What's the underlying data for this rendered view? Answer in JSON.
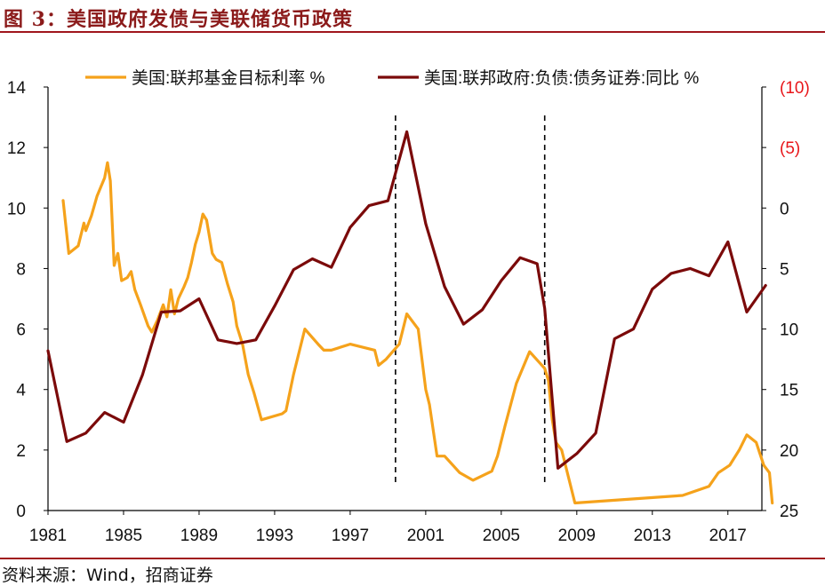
{
  "figure_title": "图 3：美国政府发债与美联储货币政策",
  "source": "资料来源：Wind，招商证券",
  "colors": {
    "fed_funds": "#F5A21B",
    "debt_yoy": "#7B0A0A",
    "right_axis_red": "#E8161A",
    "header_rule": "#A0161C"
  },
  "chart_data": {
    "type": "line",
    "x_ticks": [
      "1981",
      "1985",
      "1989",
      "1993",
      "1997",
      "2001",
      "2005",
      "2009",
      "2013",
      "2017"
    ],
    "xlim": [
      1981,
      2018.8
    ],
    "y_left": {
      "ticks": [
        "14",
        "12",
        "10",
        "8",
        "6",
        "4",
        "2",
        "0"
      ],
      "lim": [
        0,
        14
      ]
    },
    "y_right": {
      "ticks": [
        "(10)",
        "(5)",
        "0",
        "5",
        "10",
        "15",
        "20",
        "25"
      ],
      "lim": [
        -10,
        25
      ],
      "inverted": true
    },
    "vlines_dashed": [
      1999.4,
      2007.3
    ],
    "series": [
      {
        "name": "美国:联邦基金目标利率 %",
        "axis": "left",
        "color": "#F5A21B",
        "points": [
          [
            1981.8,
            10.25
          ],
          [
            1982.1,
            8.5
          ],
          [
            1982.6,
            8.75
          ],
          [
            1982.9,
            9.5
          ],
          [
            1983.0,
            9.25
          ],
          [
            1983.3,
            9.75
          ],
          [
            1983.6,
            10.4
          ],
          [
            1984.0,
            11.0
          ],
          [
            1984.15,
            11.5
          ],
          [
            1984.3,
            10.9
          ],
          [
            1984.5,
            8.1
          ],
          [
            1984.7,
            8.5
          ],
          [
            1984.9,
            7.6
          ],
          [
            1985.2,
            7.7
          ],
          [
            1985.4,
            7.9
          ],
          [
            1985.6,
            7.3
          ],
          [
            1985.9,
            6.8
          ],
          [
            1986.3,
            6.1
          ],
          [
            1986.5,
            5.9
          ],
          [
            1986.8,
            6.3
          ],
          [
            1987.1,
            6.8
          ],
          [
            1987.3,
            6.4
          ],
          [
            1987.5,
            7.3
          ],
          [
            1987.7,
            6.5
          ],
          [
            1987.9,
            7.0
          ],
          [
            1988.2,
            7.4
          ],
          [
            1988.4,
            7.7
          ],
          [
            1988.6,
            8.2
          ],
          [
            1988.8,
            8.8
          ],
          [
            1989.0,
            9.2
          ],
          [
            1989.2,
            9.8
          ],
          [
            1989.4,
            9.6
          ],
          [
            1989.7,
            8.5
          ],
          [
            1989.9,
            8.3
          ],
          [
            1990.2,
            8.2
          ],
          [
            1990.5,
            7.5
          ],
          [
            1990.8,
            6.9
          ],
          [
            1991.0,
            6.1
          ],
          [
            1991.3,
            5.5
          ],
          [
            1991.6,
            4.5
          ],
          [
            1991.9,
            3.9
          ],
          [
            1992.3,
            3.0
          ],
          [
            1993.4,
            3.2
          ],
          [
            1993.6,
            3.3
          ],
          [
            1994.0,
            4.5
          ],
          [
            1994.6,
            6.0
          ],
          [
            1995.3,
            5.5
          ],
          [
            1995.6,
            5.3
          ],
          [
            1996.0,
            5.3
          ],
          [
            1997.0,
            5.5
          ],
          [
            1998.3,
            5.3
          ],
          [
            1998.5,
            4.8
          ],
          [
            1998.9,
            5.0
          ],
          [
            1999.6,
            5.5
          ],
          [
            2000.0,
            6.5
          ],
          [
            2000.6,
            6.0
          ],
          [
            2001.0,
            4.0
          ],
          [
            2001.2,
            3.5
          ],
          [
            2001.6,
            1.8
          ],
          [
            2002.0,
            1.8
          ],
          [
            2002.8,
            1.25
          ],
          [
            2003.5,
            1.0
          ],
          [
            2004.5,
            1.3
          ],
          [
            2004.8,
            1.8
          ],
          [
            2005.2,
            2.8
          ],
          [
            2005.8,
            4.2
          ],
          [
            2006.5,
            5.25
          ],
          [
            2007.3,
            4.7
          ],
          [
            2007.5,
            4.3
          ],
          [
            2007.7,
            3.0
          ],
          [
            2007.9,
            2.25
          ],
          [
            2008.2,
            2.0
          ],
          [
            2008.9,
            0.25
          ],
          [
            2014.6,
            0.5
          ],
          [
            2016.0,
            0.8
          ],
          [
            2016.5,
            1.25
          ],
          [
            2017.1,
            1.5
          ],
          [
            2017.6,
            2.0
          ],
          [
            2018.0,
            2.5
          ],
          [
            2018.5,
            2.25
          ],
          [
            2018.9,
            1.5
          ],
          [
            2019.2,
            1.25
          ],
          [
            2019.35,
            0.25
          ]
        ]
      },
      {
        "name": "美国:联邦政府:负债:债务证券:同比 %",
        "axis": "right",
        "color": "#7B0A0A",
        "points": [
          [
            1981.0,
            11.8
          ],
          [
            1982.0,
            19.3
          ],
          [
            1983.0,
            18.6
          ],
          [
            1984.0,
            16.9
          ],
          [
            1985.0,
            17.7
          ],
          [
            1986.0,
            13.8
          ],
          [
            1987.0,
            8.6
          ],
          [
            1988.0,
            8.5
          ],
          [
            1989.0,
            7.5
          ],
          [
            1990.0,
            10.9
          ],
          [
            1991.0,
            11.2
          ],
          [
            1992.0,
            10.9
          ],
          [
            1993.0,
            8.1
          ],
          [
            1994.0,
            5.1
          ],
          [
            1995.0,
            4.2
          ],
          [
            1996.0,
            4.9
          ],
          [
            1997.0,
            1.6
          ],
          [
            1998.0,
            -0.2
          ],
          [
            1999.0,
            -0.6
          ],
          [
            2000.0,
            -6.3
          ],
          [
            2001.0,
            1.3
          ],
          [
            2002.0,
            6.5
          ],
          [
            2003.0,
            9.6
          ],
          [
            2004.0,
            8.4
          ],
          [
            2005.0,
            6.0
          ],
          [
            2006.0,
            4.1
          ],
          [
            2006.9,
            4.6
          ],
          [
            2007.3,
            8.3
          ],
          [
            2008.0,
            21.5
          ],
          [
            2009.0,
            20.3
          ],
          [
            2010.0,
            18.6
          ],
          [
            2011.0,
            10.8
          ],
          [
            2012.0,
            10.0
          ],
          [
            2013.0,
            6.7
          ],
          [
            2014.0,
            5.4
          ],
          [
            2015.0,
            5.0
          ],
          [
            2016.0,
            5.6
          ],
          [
            2017.0,
            2.8
          ],
          [
            2018.0,
            8.6
          ],
          [
            2019.0,
            6.4
          ]
        ]
      }
    ]
  }
}
